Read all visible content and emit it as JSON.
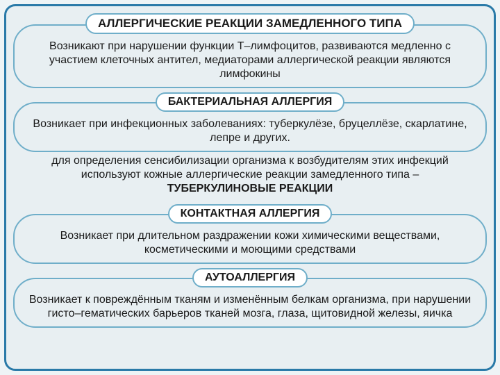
{
  "colors": {
    "page_bg": "#eef4f6",
    "frame_bg": "#e8eff2",
    "frame_border": "#2a7aa8",
    "box_border": "#6faec9",
    "text": "#1a1a1a"
  },
  "layout": {
    "frame_border_width": 3,
    "box_border_width": 2,
    "title_font_size": 17,
    "heading_font_size": 16,
    "body_font_size": 16
  },
  "main": {
    "title": "АЛЛЕРГИЧЕСКИЕ РЕАКЦИИ ЗАМЕДЛЕННОГО ТИПА",
    "intro": "Возникают при нарушении функции Т–лимфоцитов, развиваются медленно с участием клеточных антител, медиаторами аллергической реакции являются лимфокины"
  },
  "sections": [
    {
      "heading": "БАКТЕРИАЛЬНАЯ АЛЛЕРГИЯ",
      "body": "Возникает при инфекционных заболеваниях: туберкулёзе, бруцеллёзе, скарлатине, лепре и других.",
      "after_plain_pre": "для определения сенсибилизации организма к возбудителям этих инфекций используют кожные аллергические реакции замедленного типа – ",
      "after_plain_bold": "ТУБЕРКУЛИНОВЫЕ РЕАКЦИИ"
    },
    {
      "heading": "КОНТАКТНАЯ АЛЛЕРГИЯ",
      "body": "Возникает при длительном раздражении кожи химическими веществами, косметическими и моющими средствами"
    },
    {
      "heading": "АУТОАЛЛЕРГИЯ",
      "body": "Возникает к повреждённым тканям и изменённым белкам организма, при нарушении гисто–гематических барьеров тканей мозга, глаза, щитовидной железы, яичка"
    }
  ]
}
